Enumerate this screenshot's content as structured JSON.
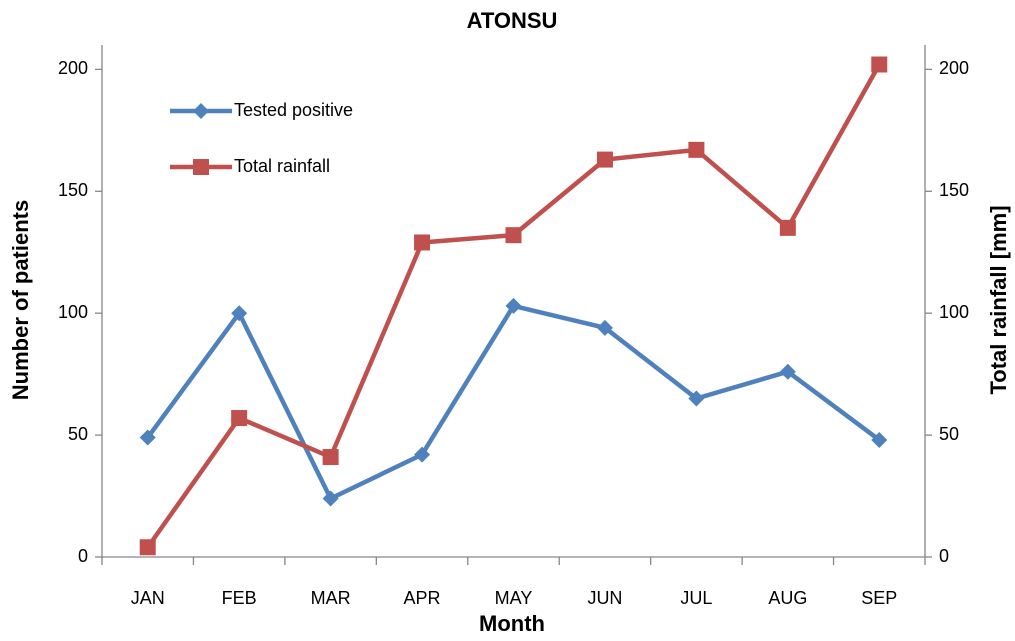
{
  "chart_data": {
    "type": "line",
    "title": "ATONSU",
    "x_label": "Month",
    "y_label": "Number of patients",
    "y2_label": "Total rainfall [mm]",
    "categories": [
      "JAN",
      "FEB",
      "MAR",
      "APR",
      "MAY",
      "JUN",
      "JUL",
      "AUG",
      "SEP"
    ],
    "series": [
      {
        "name": "Tested positive",
        "color": "#4f81bd",
        "marker": "diamond",
        "values": [
          49,
          100,
          24,
          42,
          103,
          94,
          65,
          76,
          48
        ]
      },
      {
        "name": "Total rainfall",
        "color": "#c0504d",
        "marker": "square",
        "axis": "y2",
        "values": [
          4,
          57,
          41,
          129,
          132,
          163,
          167,
          135,
          202
        ]
      }
    ],
    "ylim": [
      0,
      210
    ],
    "yticks": [
      0,
      50,
      100,
      150,
      200
    ],
    "y2lim": [
      0,
      210
    ],
    "y2ticks": [
      0,
      50,
      100,
      150,
      200
    ],
    "legend": "upper left",
    "grid": false
  }
}
